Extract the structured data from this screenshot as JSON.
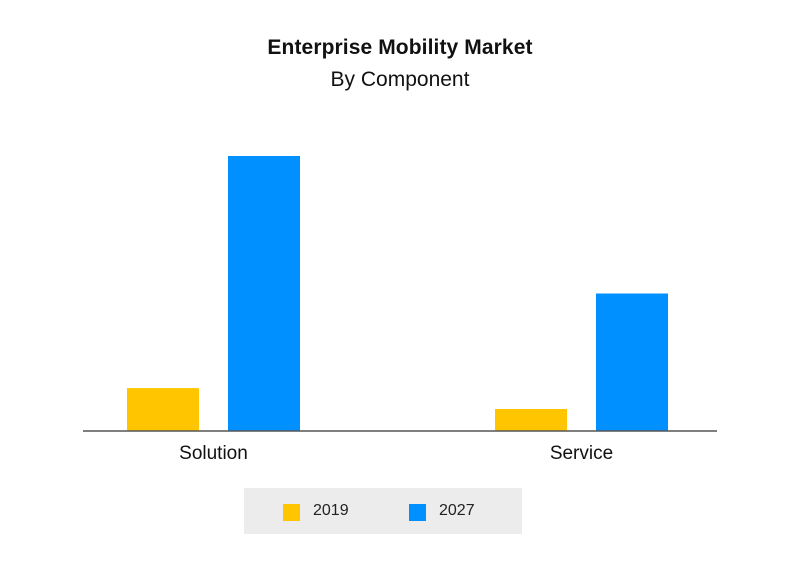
{
  "chart_data": {
    "type": "bar",
    "title": "Enterprise Mobility Market",
    "subtitle": "By Component",
    "categories": [
      "Solution",
      "Service"
    ],
    "series": [
      {
        "name": "2019",
        "color": "#ffc600",
        "values": [
          15.6,
          8.0
        ]
      },
      {
        "name": "2027",
        "color": "#0090ff",
        "values": [
          100,
          50
        ]
      }
    ],
    "ylim": [
      0,
      100
    ],
    "xlabel": "",
    "ylabel": "",
    "grid": false,
    "legend_position": "bottom"
  }
}
